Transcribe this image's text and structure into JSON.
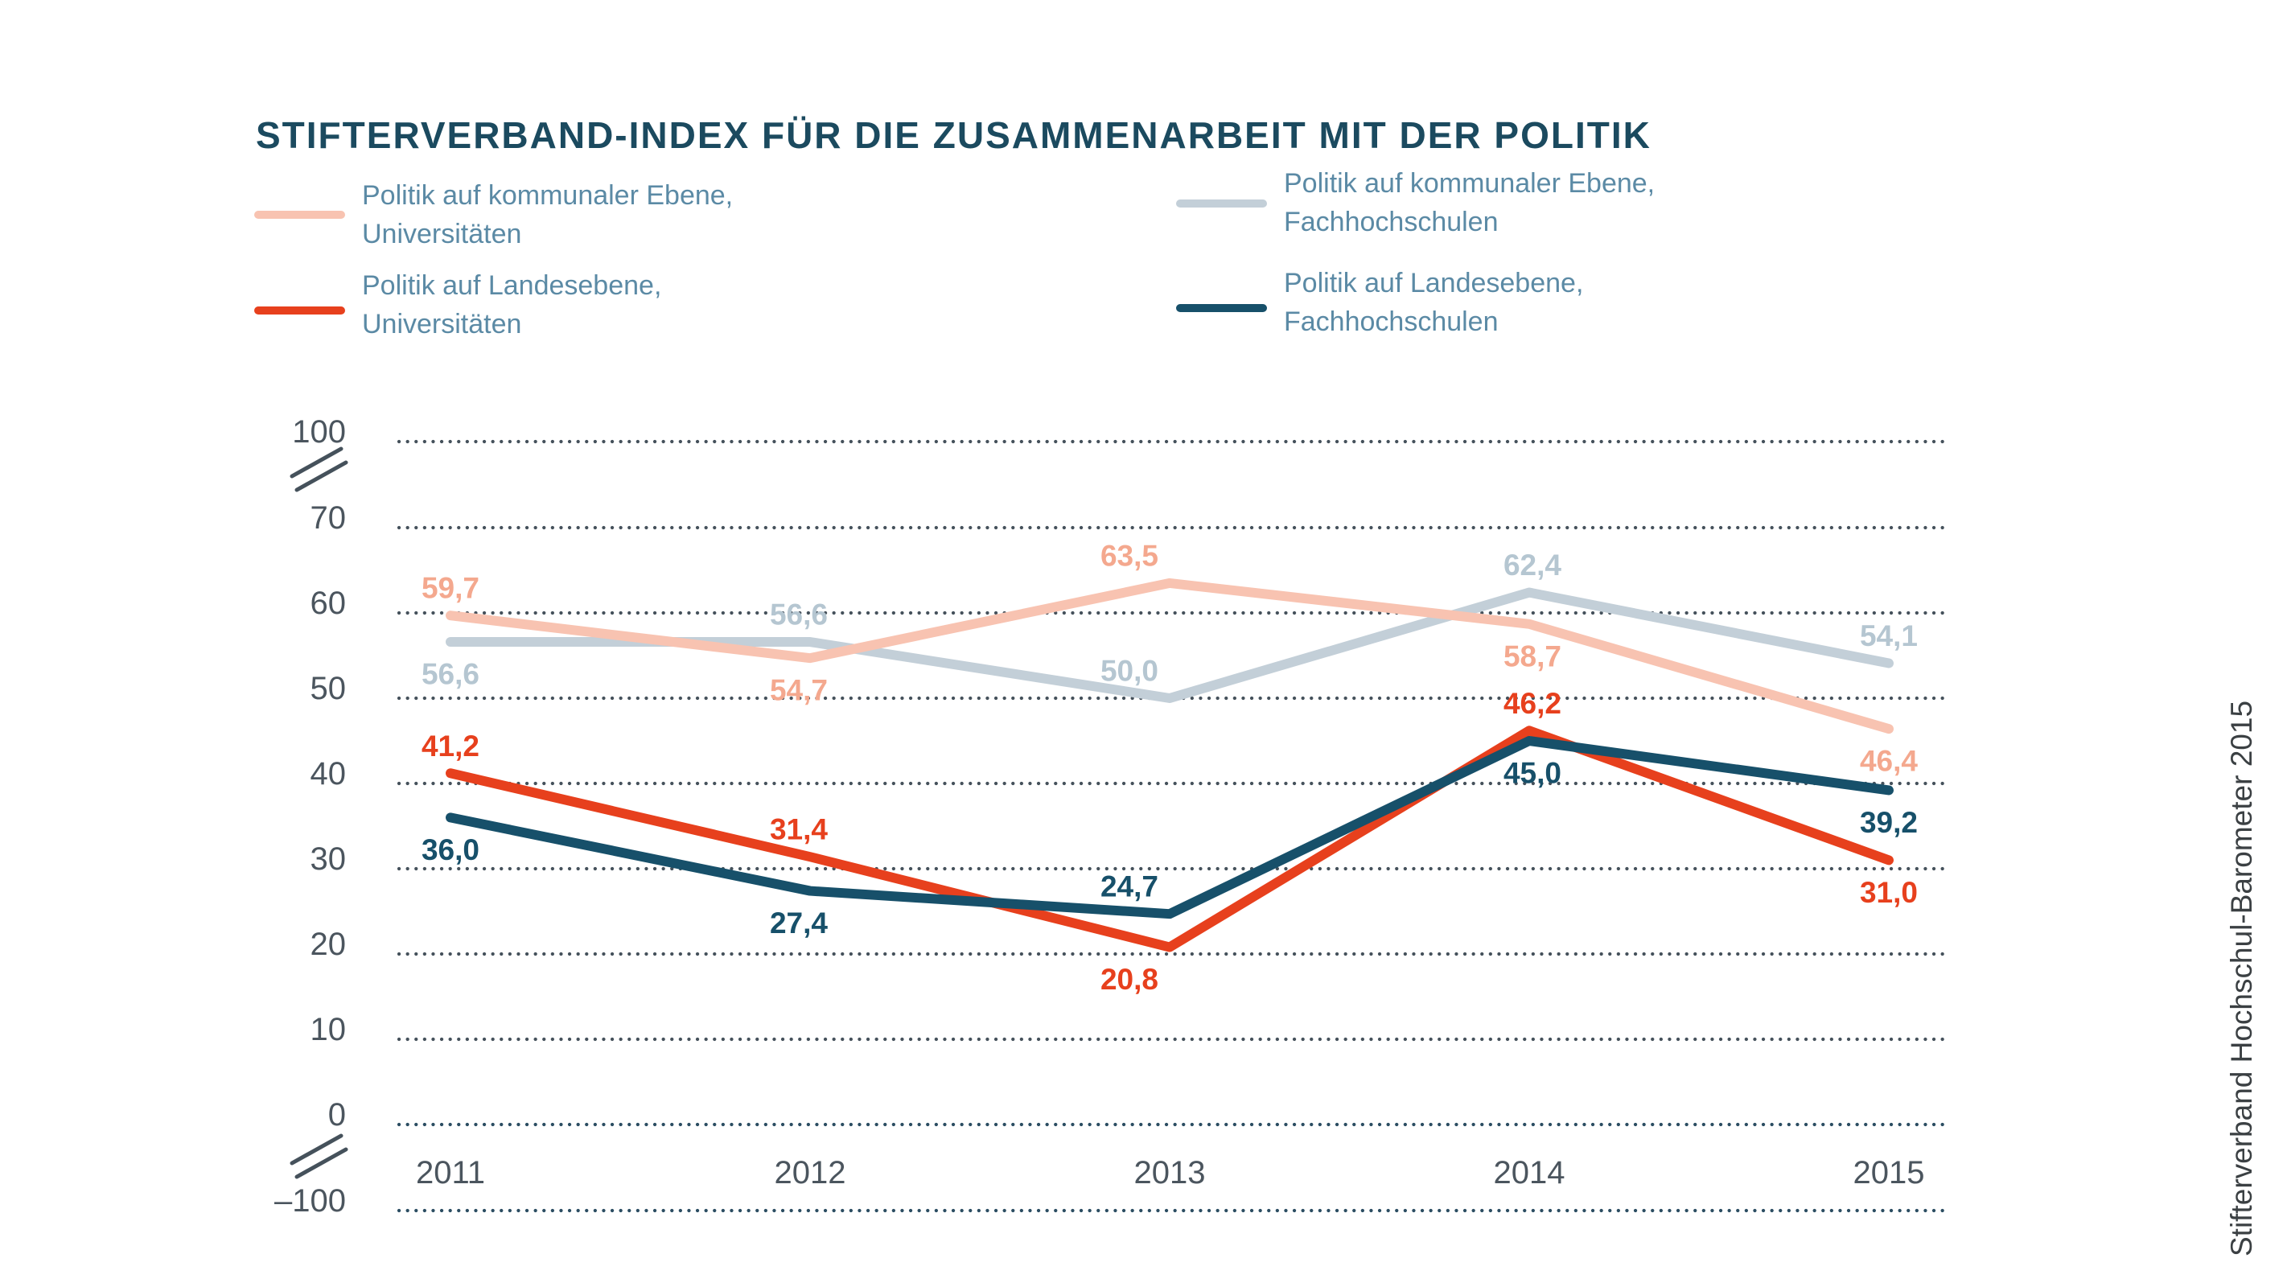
{
  "title": "STIFTERVERBAND-INDEX FÜR DIE ZUSAMMENARBEIT MIT DER POLITIK",
  "source_caption": "Stifterverband Hochschul-Barometer 2015",
  "legend": {
    "items": [
      {
        "id": "uni-kommunal",
        "line1": "Politik auf kommunaler Ebene,",
        "line2": "Universitäten",
        "color": "#f8c3b1"
      },
      {
        "id": "uni-landes",
        "line1": "Politik auf Landesebene,",
        "line2": "Universitäten",
        "color": "#e7401d"
      },
      {
        "id": "fh-kommunal",
        "line1": "Politik auf kommunaler Ebene,",
        "line2": "Fachhochschulen",
        "color": "#c3cfd8"
      },
      {
        "id": "fh-landes",
        "line1": "Politik auf Landesebene,",
        "line2": "Fachhochschulen",
        "color": "#17506a"
      }
    ]
  },
  "chart_data": {
    "type": "line",
    "title": "STIFTERVERBAND-INDEX FÜR DIE ZUSAMMENARBEIT MIT DER POLITIK",
    "x": [
      "2011",
      "2012",
      "2013",
      "2014",
      "2015"
    ],
    "y_ticks": [
      {
        "value": 100,
        "label": "100"
      },
      {
        "value": 70,
        "label": "70"
      },
      {
        "value": 60,
        "label": "60"
      },
      {
        "value": 50,
        "label": "50"
      },
      {
        "value": 40,
        "label": "40"
      },
      {
        "value": 30,
        "label": "30"
      },
      {
        "value": 20,
        "label": "20"
      },
      {
        "value": 10,
        "label": "10"
      },
      {
        "value": 0,
        "label": "0"
      },
      {
        "value": -100,
        "label": "–100"
      }
    ],
    "axis_breaks": "between 100 and 70, and between 0 and -100",
    "grid": "dotted horizontal lines",
    "legend_position": "top",
    "ylim": [
      -100,
      100
    ],
    "series": [
      {
        "name": "Politik auf kommunaler Ebene, Universitäten",
        "color": "#f8c3b1",
        "label_color": "#f4a88e",
        "values": [
          59.7,
          54.7,
          63.5,
          58.7,
          46.4
        ],
        "labels": [
          "59,7",
          "54,7",
          "63,5",
          "58,7",
          "46,4"
        ],
        "label_side": [
          "above",
          "below",
          "above",
          "below",
          "below"
        ]
      },
      {
        "name": "Politik auf kommunaler Ebene, Fachhochschulen",
        "color": "#c3cfd8",
        "label_color": "#b5c6d1",
        "values": [
          56.6,
          56.6,
          50.0,
          62.4,
          54.1
        ],
        "labels": [
          "56,6",
          "56,6",
          "50,0",
          "62,4",
          "54,1"
        ],
        "label_side": [
          "below",
          "above",
          "above",
          "above",
          "above"
        ]
      },
      {
        "name": "Politik auf Landesebene, Universitäten",
        "color": "#e7401d",
        "label_color": "#e7401d",
        "values": [
          41.2,
          31.4,
          20.8,
          46.2,
          31.0
        ],
        "labels": [
          "41,2",
          "31,4",
          "20,8",
          "46,2",
          "31,0"
        ],
        "label_side": [
          "above",
          "above",
          "below",
          "above",
          "below"
        ]
      },
      {
        "name": "Politik auf Landesebene, Fachhochschulen",
        "color": "#17506a",
        "label_color": "#17506a",
        "values": [
          36.0,
          27.4,
          24.7,
          45.0,
          39.2
        ],
        "labels": [
          "36,0",
          "27,4",
          "24,7",
          "45,0",
          "39,2"
        ],
        "label_side": [
          "below",
          "below",
          "above",
          "below",
          "below"
        ]
      }
    ]
  },
  "colors": {
    "background": "#ffffff",
    "title": "#1b4a5f",
    "legend_text": "#5b8aa5",
    "axis_text": "#4b555e",
    "grid": "#45515b",
    "grid_zero": "#2b4d62",
    "caption": "#3b4043"
  }
}
